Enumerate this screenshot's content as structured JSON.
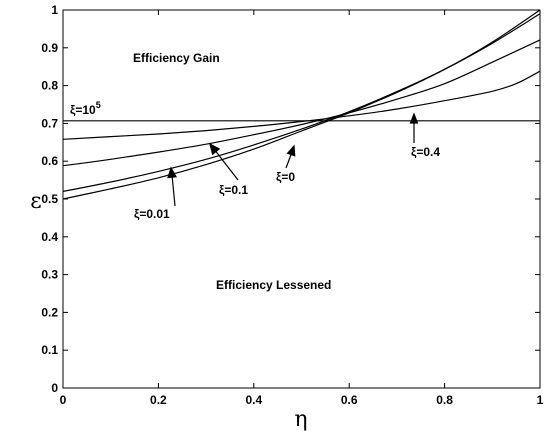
{
  "chart_data": {
    "type": "line",
    "xlabel": "η",
    "ylabel": "ε",
    "xlim": [
      0,
      1
    ],
    "ylim": [
      0,
      1
    ],
    "xticks": [
      "0",
      "0.2",
      "0.4",
      "0.6",
      "0.8",
      "1"
    ],
    "yticks": [
      "0",
      "0.1",
      "0.2",
      "0.3",
      "0.4",
      "0.5",
      "0.6",
      "0.7",
      "0.8",
      "0.9",
      "1"
    ],
    "grid": false,
    "annotations": {
      "gain": "Efficiency Gain",
      "lessened": "Efficiency Lessened"
    },
    "series": [
      {
        "name": "ξ=10^5",
        "label_main": "ξ=10",
        "label_sup": "5",
        "x": [
          0,
          0.2,
          0.4,
          0.6,
          0.8,
          1.0
        ],
        "y": [
          0.707,
          0.707,
          0.707,
          0.707,
          0.707,
          0.707
        ]
      },
      {
        "name": "ξ=0.4",
        "label_main": "ξ=0.4",
        "x": [
          0,
          0.1,
          0.2,
          0.3,
          0.4,
          0.5,
          0.6,
          0.7,
          0.8,
          0.9,
          0.95,
          1.0
        ],
        "y": [
          0.658,
          0.665,
          0.672,
          0.681,
          0.692,
          0.705,
          0.72,
          0.738,
          0.76,
          0.785,
          0.805,
          0.838
        ]
      },
      {
        "name": "ξ=0.1",
        "label_main": "ξ=0.1",
        "x": [
          0,
          0.1,
          0.2,
          0.3,
          0.4,
          0.5,
          0.6,
          0.7,
          0.8,
          0.9,
          1.0
        ],
        "y": [
          0.588,
          0.605,
          0.624,
          0.645,
          0.67,
          0.697,
          0.728,
          0.764,
          0.805,
          0.862,
          0.921
        ]
      },
      {
        "name": "ξ=0.01",
        "label_main": "ξ=0.01",
        "x": [
          0,
          0.1,
          0.2,
          0.3,
          0.4,
          0.5,
          0.6,
          0.7,
          0.8,
          0.9,
          1.0
        ],
        "y": [
          0.52,
          0.545,
          0.573,
          0.605,
          0.643,
          0.685,
          0.731,
          0.784,
          0.843,
          0.912,
          0.99
        ]
      },
      {
        "name": "ξ=0",
        "label_main": "ξ=0",
        "x": [
          0,
          0.1,
          0.2,
          0.3,
          0.4,
          0.5,
          0.6,
          0.7,
          0.8,
          0.9,
          1.0
        ],
        "y": [
          0.5,
          0.527,
          0.556,
          0.591,
          0.632,
          0.68,
          0.728,
          0.782,
          0.843,
          0.915,
          1.0
        ]
      }
    ]
  }
}
